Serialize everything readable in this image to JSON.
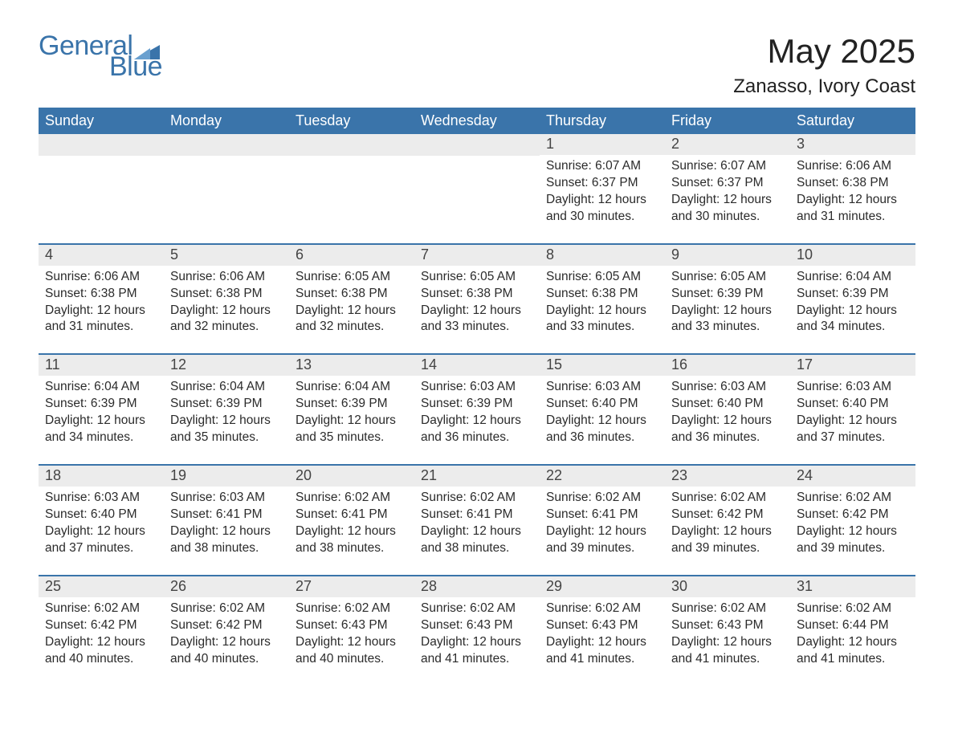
{
  "brand": {
    "name1": "General",
    "name2": "Blue",
    "accent_color": "#3a74aa"
  },
  "title": "May 2025",
  "location": "Zanasso, Ivory Coast",
  "colors": {
    "header_bg": "#3a74aa",
    "header_text": "#ffffff",
    "daynum_bg": "#ececec",
    "body_text": "#2b2b2b",
    "rule": "#3a74aa",
    "page_bg": "#ffffff"
  },
  "fonts": {
    "base_family": "Arial",
    "title_size_pt": 32,
    "location_size_pt": 18,
    "weekday_size_pt": 14,
    "body_size_pt": 11.5
  },
  "weekdays": [
    "Sunday",
    "Monday",
    "Tuesday",
    "Wednesday",
    "Thursday",
    "Friday",
    "Saturday"
  ],
  "weeks": [
    [
      {
        "day": null
      },
      {
        "day": null
      },
      {
        "day": null
      },
      {
        "day": null
      },
      {
        "day": 1,
        "sunrise": "6:07 AM",
        "sunset": "6:37 PM",
        "daylight": "12 hours and 30 minutes."
      },
      {
        "day": 2,
        "sunrise": "6:07 AM",
        "sunset": "6:37 PM",
        "daylight": "12 hours and 30 minutes."
      },
      {
        "day": 3,
        "sunrise": "6:06 AM",
        "sunset": "6:38 PM",
        "daylight": "12 hours and 31 minutes."
      }
    ],
    [
      {
        "day": 4,
        "sunrise": "6:06 AM",
        "sunset": "6:38 PM",
        "daylight": "12 hours and 31 minutes."
      },
      {
        "day": 5,
        "sunrise": "6:06 AM",
        "sunset": "6:38 PM",
        "daylight": "12 hours and 32 minutes."
      },
      {
        "day": 6,
        "sunrise": "6:05 AM",
        "sunset": "6:38 PM",
        "daylight": "12 hours and 32 minutes."
      },
      {
        "day": 7,
        "sunrise": "6:05 AM",
        "sunset": "6:38 PM",
        "daylight": "12 hours and 33 minutes."
      },
      {
        "day": 8,
        "sunrise": "6:05 AM",
        "sunset": "6:38 PM",
        "daylight": "12 hours and 33 minutes."
      },
      {
        "day": 9,
        "sunrise": "6:05 AM",
        "sunset": "6:39 PM",
        "daylight": "12 hours and 33 minutes."
      },
      {
        "day": 10,
        "sunrise": "6:04 AM",
        "sunset": "6:39 PM",
        "daylight": "12 hours and 34 minutes."
      }
    ],
    [
      {
        "day": 11,
        "sunrise": "6:04 AM",
        "sunset": "6:39 PM",
        "daylight": "12 hours and 34 minutes."
      },
      {
        "day": 12,
        "sunrise": "6:04 AM",
        "sunset": "6:39 PM",
        "daylight": "12 hours and 35 minutes."
      },
      {
        "day": 13,
        "sunrise": "6:04 AM",
        "sunset": "6:39 PM",
        "daylight": "12 hours and 35 minutes."
      },
      {
        "day": 14,
        "sunrise": "6:03 AM",
        "sunset": "6:39 PM",
        "daylight": "12 hours and 36 minutes."
      },
      {
        "day": 15,
        "sunrise": "6:03 AM",
        "sunset": "6:40 PM",
        "daylight": "12 hours and 36 minutes."
      },
      {
        "day": 16,
        "sunrise": "6:03 AM",
        "sunset": "6:40 PM",
        "daylight": "12 hours and 36 minutes."
      },
      {
        "day": 17,
        "sunrise": "6:03 AM",
        "sunset": "6:40 PM",
        "daylight": "12 hours and 37 minutes."
      }
    ],
    [
      {
        "day": 18,
        "sunrise": "6:03 AM",
        "sunset": "6:40 PM",
        "daylight": "12 hours and 37 minutes."
      },
      {
        "day": 19,
        "sunrise": "6:03 AM",
        "sunset": "6:41 PM",
        "daylight": "12 hours and 38 minutes."
      },
      {
        "day": 20,
        "sunrise": "6:02 AM",
        "sunset": "6:41 PM",
        "daylight": "12 hours and 38 minutes."
      },
      {
        "day": 21,
        "sunrise": "6:02 AM",
        "sunset": "6:41 PM",
        "daylight": "12 hours and 38 minutes."
      },
      {
        "day": 22,
        "sunrise": "6:02 AM",
        "sunset": "6:41 PM",
        "daylight": "12 hours and 39 minutes."
      },
      {
        "day": 23,
        "sunrise": "6:02 AM",
        "sunset": "6:42 PM",
        "daylight": "12 hours and 39 minutes."
      },
      {
        "day": 24,
        "sunrise": "6:02 AM",
        "sunset": "6:42 PM",
        "daylight": "12 hours and 39 minutes."
      }
    ],
    [
      {
        "day": 25,
        "sunrise": "6:02 AM",
        "sunset": "6:42 PM",
        "daylight": "12 hours and 40 minutes."
      },
      {
        "day": 26,
        "sunrise": "6:02 AM",
        "sunset": "6:42 PM",
        "daylight": "12 hours and 40 minutes."
      },
      {
        "day": 27,
        "sunrise": "6:02 AM",
        "sunset": "6:43 PM",
        "daylight": "12 hours and 40 minutes."
      },
      {
        "day": 28,
        "sunrise": "6:02 AM",
        "sunset": "6:43 PM",
        "daylight": "12 hours and 41 minutes."
      },
      {
        "day": 29,
        "sunrise": "6:02 AM",
        "sunset": "6:43 PM",
        "daylight": "12 hours and 41 minutes."
      },
      {
        "day": 30,
        "sunrise": "6:02 AM",
        "sunset": "6:43 PM",
        "daylight": "12 hours and 41 minutes."
      },
      {
        "day": 31,
        "sunrise": "6:02 AM",
        "sunset": "6:44 PM",
        "daylight": "12 hours and 41 minutes."
      }
    ]
  ],
  "labels": {
    "sunrise": "Sunrise:",
    "sunset": "Sunset:",
    "daylight": "Daylight:"
  }
}
